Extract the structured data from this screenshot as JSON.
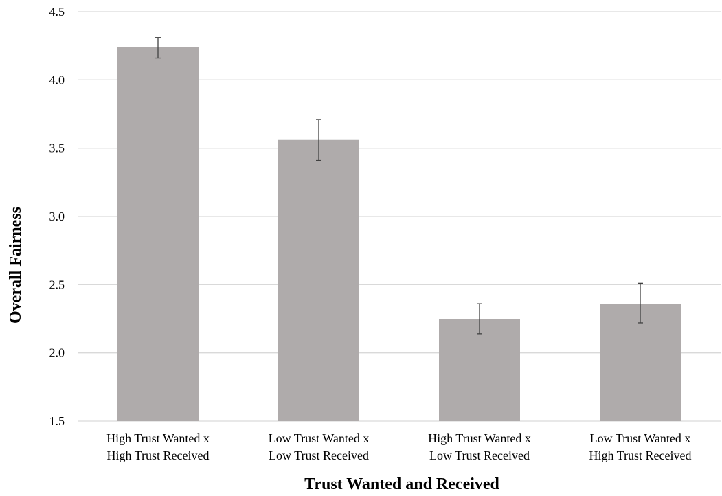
{
  "chart_data": {
    "type": "bar",
    "title": "",
    "xlabel": "Trust Wanted and Received",
    "ylabel": "Overall Fairness",
    "ylim": [
      1.5,
      4.5
    ],
    "yticks": [
      "1.5",
      "2.0",
      "2.5",
      "3.0",
      "3.5",
      "4.0",
      "4.5"
    ],
    "grid": true,
    "categories": [
      [
        "High Trust Wanted x",
        "High Trust Received"
      ],
      [
        "Low Trust Wanted x",
        "Low Trust Received"
      ],
      [
        "High Trust Wanted x",
        "Low Trust Received"
      ],
      [
        "Low Trust Wanted x",
        "High Trust Received"
      ]
    ],
    "values": [
      4.24,
      3.56,
      2.25,
      2.36
    ],
    "error_bars": [
      [
        4.16,
        4.31
      ],
      [
        3.41,
        3.71
      ],
      [
        2.14,
        2.36
      ],
      [
        2.22,
        2.51
      ]
    ],
    "colors": {
      "bar": "#afabab",
      "grid": "#d9d9d9",
      "error_bar": "#404040"
    }
  }
}
